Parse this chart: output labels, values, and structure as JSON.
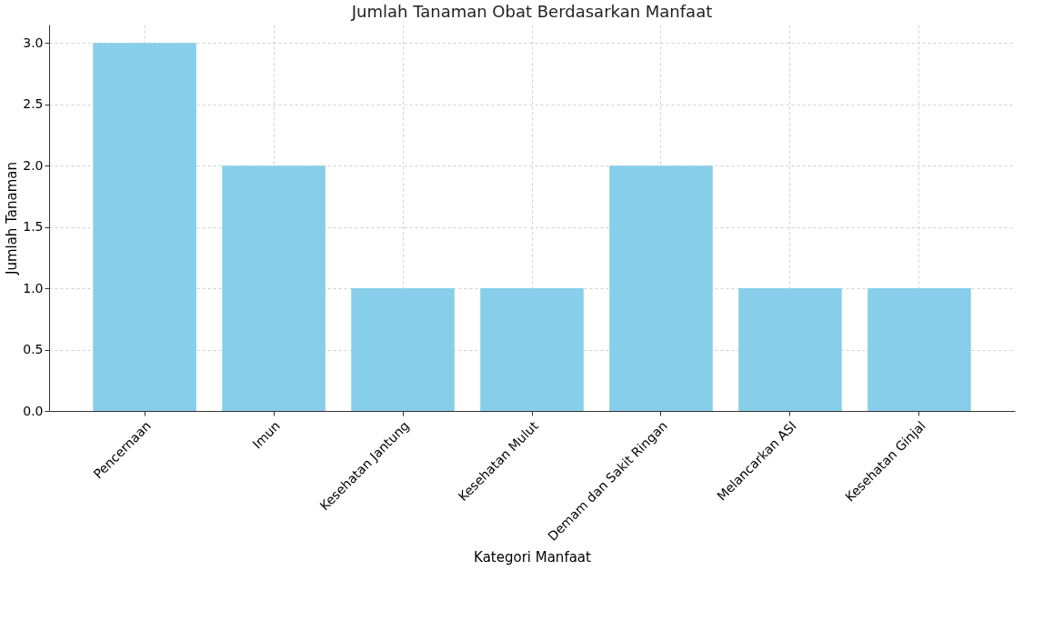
{
  "chart_data": {
    "type": "bar",
    "title": "Jumlah Tanaman Obat Berdasarkan Manfaat",
    "xlabel": "Kategori Manfaat",
    "ylabel": "Jumlah Tanaman",
    "categories": [
      "Pencernaan",
      "Imun",
      "Kesehatan Jantung",
      "Kesehatan Mulut",
      "Demam dan Sakit Ringan",
      "Melancarkan ASI",
      "Kesehatan Ginjal"
    ],
    "values": [
      3,
      2,
      1,
      1,
      2,
      1,
      1
    ],
    "color": "#87ceeb",
    "ylim": [
      0,
      3.15
    ],
    "yticks": [
      {
        "value": 0,
        "label": "0.0"
      },
      {
        "value": 0.5,
        "label": "0.5"
      },
      {
        "value": 1,
        "label": "1.0"
      },
      {
        "value": 1.5,
        "label": "1.5"
      },
      {
        "value": 2,
        "label": "2.0"
      },
      {
        "value": 2.5,
        "label": "2.5"
      },
      {
        "value": 3,
        "label": "3.0"
      }
    ],
    "grid": true
  }
}
